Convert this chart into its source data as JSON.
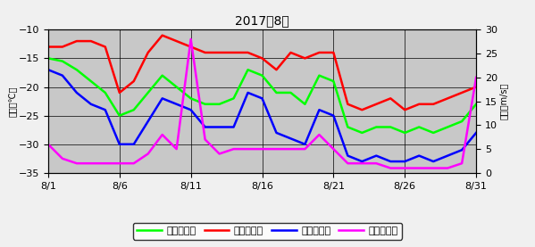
{
  "title": "2017年8月",
  "days": [
    1,
    2,
    3,
    4,
    5,
    6,
    7,
    8,
    9,
    10,
    11,
    12,
    13,
    14,
    15,
    16,
    17,
    18,
    19,
    20,
    21,
    22,
    23,
    24,
    25,
    26,
    27,
    28,
    29,
    30,
    31
  ],
  "avg_temp": [
    -15,
    -15.5,
    -17,
    -19,
    -21,
    -25,
    -24,
    -21,
    -18,
    -20,
    -22,
    -23,
    -23,
    -22,
    -17,
    -18,
    -21,
    -21,
    -23,
    -18,
    -19,
    -27,
    -28,
    -27,
    -27,
    -28,
    -27,
    -28,
    -27,
    -26,
    -23
  ],
  "max_temp": [
    -13,
    -13,
    -12,
    -12,
    -13,
    -21,
    -19,
    -14,
    -11,
    -12,
    -13,
    -14,
    -14,
    -14,
    -14,
    -15,
    -17,
    -14,
    -15,
    -14,
    -14,
    -23,
    -24,
    -23,
    -22,
    -24,
    -23,
    -23,
    -22,
    -21,
    -20
  ],
  "min_temp": [
    -17,
    -18,
    -21,
    -23,
    -24,
    -30,
    -30,
    -26,
    -22,
    -23,
    -24,
    -27,
    -27,
    -27,
    -21,
    -22,
    -28,
    -29,
    -30,
    -24,
    -25,
    -32,
    -33,
    -32,
    -33,
    -33,
    -32,
    -33,
    -32,
    -31,
    -28
  ],
  "wind_speed": [
    6,
    3,
    2,
    2,
    2,
    2,
    2,
    4,
    8,
    5,
    28,
    7,
    4,
    5,
    5,
    5,
    5,
    5,
    5,
    8,
    5,
    2,
    2,
    2,
    1,
    1,
    1,
    1,
    1,
    2,
    20
  ],
  "temp_ylim": [
    -35,
    -10
  ],
  "wind_ylim": [
    0,
    30
  ],
  "temp_yticks": [
    -35,
    -30,
    -25,
    -20,
    -15,
    -10
  ],
  "wind_yticks": [
    0,
    5,
    10,
    15,
    20,
    25,
    30
  ],
  "xtick_positions": [
    1,
    6,
    11,
    16,
    21,
    26,
    31
  ],
  "xtick_labels": [
    "8/1",
    "8/6",
    "8/11",
    "8/16",
    "8/21",
    "8/26",
    "8/31"
  ],
  "color_avg": "#00ff00",
  "color_max": "#ff0000",
  "color_min": "#0000ff",
  "color_wind": "#ff00ff",
  "bg_color": "#c8c8c8",
  "fig_bg_color": "#f0f0f0",
  "legend_labels": [
    "日平均気温",
    "日最高気温",
    "日最低気温",
    "日平均風速"
  ],
  "ylabel_left": "気温（℃）",
  "ylabel_right": "風速（m/s）",
  "linewidth": 1.8
}
